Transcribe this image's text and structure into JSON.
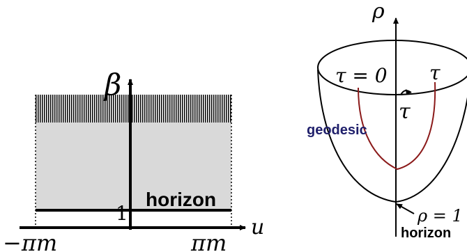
{
  "left_panel": {
    "beta_label": "β",
    "u_label": "u",
    "tick_one": "1",
    "horizon_label": "horizon",
    "left_limit_label": "−πm",
    "right_limit_label": "πm"
  },
  "right_panel": {
    "rho_label": "ρ",
    "tau_zero_label": "τ = 0",
    "tau_top_label": "τ",
    "tau_arrow_label": "τ",
    "geodesic_label": "geodesic",
    "rho_one_label": "ρ = 1",
    "horizon_label": "horizon"
  },
  "colors": {
    "band_fill": "#d9d9d9",
    "hatch_color": "#000000",
    "geodesic_text": "#1f1f6b",
    "geodesic_curve": "#8b1a1a"
  }
}
